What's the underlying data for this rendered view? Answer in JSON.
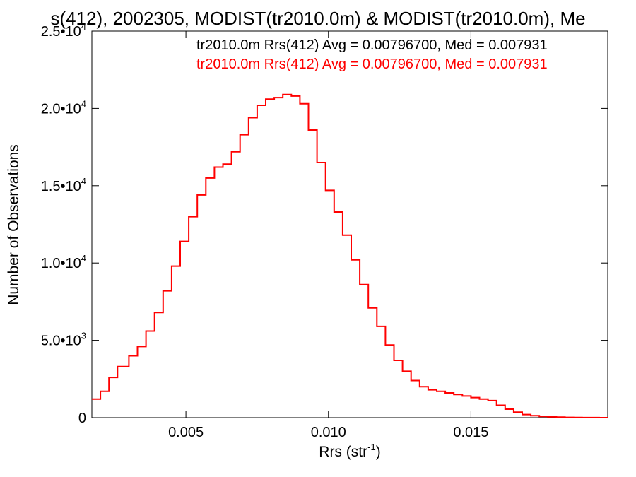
{
  "chart_data": {
    "type": "line",
    "title": "s(412), 2002305, MODIST(tr2010.0m) & MODIST(tr2010.0m), Me",
    "xlabel": "Rrs (str",
    "xlabel_sup": "-1",
    "xlabel_end": ")",
    "ylabel": "Number of Observations",
    "xlim": [
      0.0017,
      0.0198
    ],
    "ylim": [
      0,
      25000
    ],
    "x_ticks": [
      {
        "value": 0.005,
        "label": "0.005"
      },
      {
        "value": 0.01,
        "label": "0.010"
      },
      {
        "value": 0.015,
        "label": "0.015"
      }
    ],
    "y_ticks": [
      {
        "value": 0,
        "label": "0",
        "exp": ""
      },
      {
        "value": 5000,
        "label": "5.0•10",
        "exp": "3"
      },
      {
        "value": 10000,
        "label": "1.0•10",
        "exp": "4"
      },
      {
        "value": 15000,
        "label": "1.5•10",
        "exp": "4"
      },
      {
        "value": 20000,
        "label": "2.0•10",
        "exp": "4"
      },
      {
        "value": 25000,
        "label": "2.5•10",
        "exp": "4"
      }
    ],
    "grid": false,
    "legend": [
      {
        "text": "tr2010.0m Rrs(412) Avg = 0.00796700, Med = 0.007931",
        "color": "#000000"
      },
      {
        "text": "tr2010.0m Rrs(412) Avg = 0.00796700, Med = 0.007931",
        "color": "#ff0000"
      }
    ],
    "series": [
      {
        "color": "#ff0000",
        "style": "step",
        "points": [
          [
            0.0017,
            1200
          ],
          [
            0.002,
            1700
          ],
          [
            0.0023,
            2600
          ],
          [
            0.0026,
            3300
          ],
          [
            0.003,
            4000
          ],
          [
            0.0033,
            4600
          ],
          [
            0.0036,
            5600
          ],
          [
            0.0039,
            6800
          ],
          [
            0.0042,
            8200
          ],
          [
            0.0045,
            9800
          ],
          [
            0.0048,
            11400
          ],
          [
            0.0051,
            13000
          ],
          [
            0.0054,
            14400
          ],
          [
            0.0057,
            15500
          ],
          [
            0.006,
            16200
          ],
          [
            0.0063,
            16400
          ],
          [
            0.0066,
            17200
          ],
          [
            0.0069,
            18300
          ],
          [
            0.0072,
            19400
          ],
          [
            0.0075,
            20200
          ],
          [
            0.0078,
            20600
          ],
          [
            0.0081,
            20700
          ],
          [
            0.0084,
            20900
          ],
          [
            0.0087,
            20800
          ],
          [
            0.009,
            20300
          ],
          [
            0.0093,
            18600
          ],
          [
            0.0096,
            16500
          ],
          [
            0.0099,
            14700
          ],
          [
            0.0102,
            13300
          ],
          [
            0.0105,
            11800
          ],
          [
            0.0108,
            10200
          ],
          [
            0.0111,
            8600
          ],
          [
            0.0114,
            7100
          ],
          [
            0.0117,
            5900
          ],
          [
            0.012,
            4700
          ],
          [
            0.0123,
            3700
          ],
          [
            0.0126,
            3000
          ],
          [
            0.0129,
            2400
          ],
          [
            0.0132,
            2000
          ],
          [
            0.0135,
            1800
          ],
          [
            0.0138,
            1700
          ],
          [
            0.0141,
            1600
          ],
          [
            0.0144,
            1500
          ],
          [
            0.0147,
            1400
          ],
          [
            0.015,
            1300
          ],
          [
            0.0153,
            1200
          ],
          [
            0.0156,
            1100
          ],
          [
            0.0159,
            800
          ],
          [
            0.0162,
            550
          ],
          [
            0.0165,
            350
          ],
          [
            0.0168,
            200
          ],
          [
            0.0171,
            130
          ],
          [
            0.0174,
            80
          ],
          [
            0.0177,
            50
          ],
          [
            0.018,
            30
          ],
          [
            0.0183,
            20
          ],
          [
            0.0186,
            10
          ],
          [
            0.0189,
            5
          ],
          [
            0.0192,
            3
          ],
          [
            0.0195,
            2
          ],
          [
            0.0198,
            1
          ]
        ]
      }
    ]
  }
}
